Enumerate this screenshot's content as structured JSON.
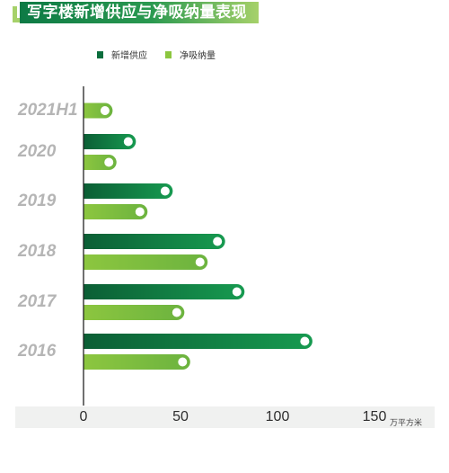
{
  "title": "写字楼新增供应与净吸纳量表现",
  "colors": {
    "supply": "#0b6e3d",
    "absorption": "#8cc63f",
    "title_bar": "#1a8a48",
    "accent": "#a6d16a",
    "axis_band": "#f0f1f0"
  },
  "legend": [
    {
      "label": "新增供应",
      "color": "#0b6e3d"
    },
    {
      "label": "净吸纳量",
      "color": "#8cc63f"
    }
  ],
  "unit": "万平方米",
  "chart_data": {
    "type": "bar",
    "orientation": "horizontal",
    "title": "写字楼新增供应与净吸纳量表现",
    "categories": [
      "2021H1",
      "2020",
      "2019",
      "2018",
      "2017",
      "2016"
    ],
    "series": [
      {
        "name": "新增供应",
        "values": [
          null,
          27,
          46,
          73,
          83,
          118
        ]
      },
      {
        "name": "净吸纳量",
        "values": [
          15,
          17,
          33,
          64,
          52,
          55
        ]
      }
    ],
    "xlim": [
      0,
      150
    ],
    "xticks": [
      "0",
      "50",
      "100",
      "150"
    ],
    "xlabel": "万平方米",
    "ylabel": "",
    "legend_position": "top-left",
    "grid": false
  }
}
